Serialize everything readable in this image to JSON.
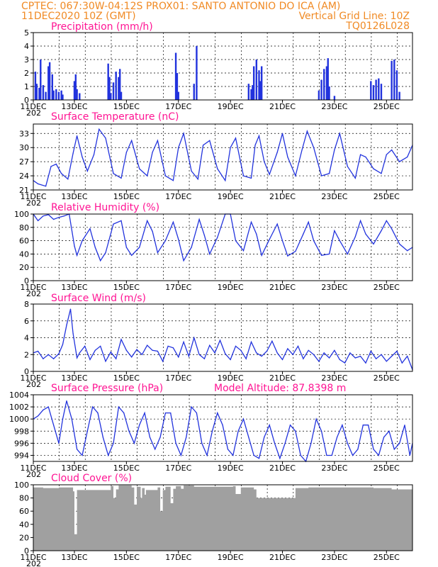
{
  "header": {
    "line1": "CPTEC:   067:30W-04:12S   PROX01: SANTO ANTONIO DO ICA (AM)",
    "line2_left": "11DEC2020 10Z (GMT)",
    "line2_right": "Vertical Grid Line: 10Z",
    "line3_right": "TQ0126L028",
    "color": "#f08a24"
  },
  "colors": {
    "title": "#ff1493",
    "series": "#2233dd",
    "cloud": "#a0a0a0"
  },
  "date_ticks": [
    "11DEC",
    "13DEC",
    "15DEC",
    "17DEC",
    "19DEC",
    "21DEC",
    "23DEC",
    "25DEC"
  ],
  "date_ticks_year": "202",
  "panel_titles": {
    "precipitation": "Precipitation (mm/h)",
    "temperature": "Surface Temperature (nC)",
    "humidity": "Relative Humidity (%)",
    "wind": "Surface Wind (m/s)",
    "pressure": "Surface Pressure (hPa)",
    "altitude": "Model Altitude: 87.8398 m",
    "cloud": "Cloud Cover (%)"
  },
  "chart_data": [
    {
      "id": "precipitation",
      "type": "bar",
      "unit": "mm/h",
      "ylim": [
        0,
        5
      ],
      "yticks": [
        0,
        1,
        2,
        3,
        4,
        5
      ],
      "x_start_day": 11.42,
      "x_end_day": 26.0,
      "x": [
        11.5,
        11.55,
        11.65,
        11.7,
        11.8,
        11.9,
        12.0,
        12.05,
        12.15,
        12.2,
        12.3,
        12.4,
        12.5,
        12.55,
        13.0,
        13.05,
        13.1,
        13.2,
        14.3,
        14.35,
        14.4,
        14.5,
        14.6,
        14.7,
        14.75,
        14.8,
        16.9,
        16.95,
        17.0,
        17.6,
        17.7,
        19.7,
        19.8,
        19.85,
        19.9,
        20.0,
        20.1,
        20.15,
        20.2,
        22.4,
        22.5,
        22.6,
        22.7,
        22.75,
        22.8,
        23.0,
        24.4,
        24.5,
        24.6,
        24.7,
        24.8,
        25.2,
        25.3,
        25.4,
        25.5
      ],
      "values": [
        2.1,
        1.2,
        0.9,
        3.0,
        1.1,
        0.6,
        2.5,
        2.8,
        1.9,
        0.7,
        0.8,
        0.6,
        0.7,
        0.4,
        1.4,
        1.9,
        0.8,
        0.5,
        2.7,
        1.7,
        0.5,
        1.3,
        2.1,
        1.7,
        2.3,
        0.6,
        3.5,
        2.0,
        0.6,
        1.2,
        4.0,
        1.2,
        0.8,
        1.1,
        2.5,
        3.0,
        2.2,
        1.4,
        2.5,
        0.7,
        1.5,
        2.3,
        2.5,
        3.1,
        1.0,
        0.3,
        1.4,
        1.1,
        1.5,
        1.6,
        1.2,
        2.9,
        3.0,
        2.2,
        0.6
      ]
    },
    {
      "id": "temperature",
      "type": "line",
      "unit": "C",
      "ylim": [
        21,
        35
      ],
      "yticks": [
        21,
        24,
        27,
        30,
        33
      ],
      "x": [
        11.42,
        11.6,
        11.9,
        12.1,
        12.3,
        12.5,
        12.75,
        12.95,
        13.1,
        13.3,
        13.5,
        13.75,
        13.95,
        14.2,
        14.5,
        14.8,
        15.0,
        15.2,
        15.5,
        15.8,
        16.0,
        16.2,
        16.5,
        16.8,
        17.0,
        17.2,
        17.5,
        17.75,
        17.95,
        18.2,
        18.5,
        18.8,
        19.0,
        19.2,
        19.5,
        19.8,
        19.95,
        20.1,
        20.3,
        20.5,
        20.8,
        21.0,
        21.2,
        21.5,
        21.75,
        21.95,
        22.2,
        22.5,
        22.8,
        23.0,
        23.2,
        23.5,
        23.8,
        24.0,
        24.2,
        24.5,
        24.8,
        25.0,
        25.2,
        25.5,
        25.8,
        26.0
      ],
      "values": [
        23.0,
        22.3,
        21.8,
        26.0,
        26.5,
        24.5,
        23.3,
        28.8,
        32.5,
        28.0,
        25.0,
        28.5,
        33.9,
        32.0,
        24.5,
        23.5,
        29.0,
        31.5,
        25.5,
        24.0,
        29.0,
        31.5,
        24.0,
        23.0,
        30.0,
        33.0,
        25.0,
        23.3,
        30.5,
        31.5,
        25.5,
        23.0,
        30.0,
        32.0,
        24.0,
        23.5,
        30.5,
        32.5,
        27.0,
        24.3,
        29.0,
        33.0,
        28.0,
        24.0,
        29.5,
        33.5,
        30.0,
        24.0,
        24.5,
        29.5,
        33.0,
        26.0,
        23.5,
        28.5,
        28.0,
        25.5,
        24.5,
        28.5,
        29.5,
        27.0,
        28.0,
        30.5
      ]
    },
    {
      "id": "humidity",
      "type": "line",
      "unit": "%",
      "ylim": [
        0,
        100
      ],
      "yticks": [
        0,
        20,
        40,
        60,
        80,
        100
      ],
      "x": [
        11.42,
        11.6,
        11.8,
        12.0,
        12.2,
        12.4,
        12.6,
        12.8,
        13.0,
        13.1,
        13.3,
        13.6,
        13.8,
        14.0,
        14.2,
        14.5,
        14.8,
        15.0,
        15.2,
        15.5,
        15.8,
        16.0,
        16.2,
        16.5,
        16.8,
        17.0,
        17.2,
        17.5,
        17.8,
        18.0,
        18.2,
        18.5,
        18.8,
        19.0,
        19.2,
        19.5,
        19.8,
        20.0,
        20.2,
        20.5,
        20.8,
        21.0,
        21.2,
        21.5,
        21.8,
        22.0,
        22.2,
        22.5,
        22.8,
        23.0,
        23.2,
        23.5,
        23.8,
        24.0,
        24.2,
        24.5,
        24.8,
        25.0,
        25.2,
        25.5,
        25.8,
        26.0
      ],
      "values": [
        100,
        90,
        97,
        99,
        92,
        95,
        97,
        100,
        52,
        38,
        60,
        78,
        50,
        30,
        42,
        85,
        90,
        50,
        38,
        50,
        90,
        74,
        42,
        60,
        88,
        62,
        30,
        50,
        92,
        68,
        40,
        65,
        100,
        100,
        60,
        45,
        88,
        70,
        38,
        62,
        85,
        60,
        37,
        44,
        70,
        88,
        60,
        38,
        40,
        75,
        60,
        40,
        66,
        90,
        70,
        55,
        75,
        90,
        78,
        55,
        45,
        50
      ]
    },
    {
      "id": "wind",
      "type": "line",
      "unit": "m/s",
      "ylim": [
        0,
        8
      ],
      "yticks": [
        0,
        2,
        4,
        6,
        8
      ],
      "x": [
        11.42,
        11.6,
        11.8,
        12.0,
        12.2,
        12.4,
        12.55,
        12.7,
        12.85,
        12.95,
        13.1,
        13.2,
        13.4,
        13.6,
        13.8,
        14.0,
        14.2,
        14.4,
        14.6,
        14.8,
        15.0,
        15.2,
        15.4,
        15.6,
        15.8,
        16.0,
        16.2,
        16.4,
        16.6,
        16.8,
        17.0,
        17.2,
        17.4,
        17.6,
        17.8,
        18.0,
        18.2,
        18.4,
        18.6,
        18.8,
        19.0,
        19.2,
        19.4,
        19.6,
        19.8,
        20.0,
        20.2,
        20.4,
        20.6,
        20.8,
        21.0,
        21.2,
        21.4,
        21.6,
        21.8,
        22.0,
        22.2,
        22.4,
        22.6,
        22.8,
        23.0,
        23.2,
        23.4,
        23.6,
        23.8,
        24.0,
        24.2,
        24.4,
        24.6,
        24.8,
        25.0,
        25.2,
        25.4,
        25.6,
        25.8,
        26.0
      ],
      "values": [
        2.2,
        2.4,
        1.5,
        2.0,
        1.5,
        2.1,
        3.2,
        5.5,
        7.4,
        4.5,
        1.6,
        2.2,
        3.0,
        1.4,
        2.5,
        3.0,
        1.2,
        2.3,
        1.5,
        3.8,
        2.5,
        1.7,
        2.6,
        2.0,
        3.1,
        2.5,
        2.4,
        1.2,
        3.0,
        2.8,
        1.7,
        3.5,
        1.8,
        4.0,
        2.0,
        1.5,
        3.1,
        2.2,
        3.7,
        2.1,
        1.4,
        3.0,
        2.5,
        1.5,
        3.5,
        2.2,
        1.8,
        2.4,
        3.6,
        2.2,
        1.4,
        2.7,
        2.0,
        3.0,
        1.5,
        2.5,
        2.0,
        1.2,
        2.2,
        1.6,
        2.5,
        1.4,
        1.0,
        2.2,
        1.6,
        1.8,
        1.0,
        2.4,
        1.5,
        2.0,
        1.2,
        1.8,
        2.4,
        1.0,
        1.8,
        0.2
      ]
    },
    {
      "id": "pressure",
      "type": "line",
      "unit": "hPa",
      "ylim": [
        993,
        1004
      ],
      "yticks": [
        994,
        996,
        998,
        1000,
        1002,
        1004
      ],
      "x": [
        11.42,
        11.6,
        11.8,
        12.0,
        12.2,
        12.4,
        12.55,
        12.7,
        12.9,
        13.1,
        13.3,
        13.5,
        13.7,
        13.9,
        14.1,
        14.3,
        14.5,
        14.7,
        14.9,
        15.1,
        15.3,
        15.5,
        15.7,
        15.9,
        16.1,
        16.3,
        16.5,
        16.7,
        16.9,
        17.1,
        17.3,
        17.5,
        17.7,
        17.9,
        18.1,
        18.3,
        18.5,
        18.7,
        18.9,
        19.1,
        19.3,
        19.5,
        19.7,
        19.9,
        20.1,
        20.3,
        20.5,
        20.7,
        20.9,
        21.1,
        21.3,
        21.5,
        21.7,
        21.9,
        22.1,
        22.3,
        22.5,
        22.7,
        22.9,
        23.1,
        23.3,
        23.5,
        23.7,
        23.9,
        24.1,
        24.3,
        24.5,
        24.7,
        24.9,
        25.1,
        25.3,
        25.5,
        25.7,
        25.9,
        26.0
      ],
      "values": [
        1000,
        1000.5,
        1001.5,
        1002,
        999,
        996,
        1000,
        1003,
        1000,
        995,
        994,
        998,
        1002,
        1001,
        997,
        994,
        996,
        1002,
        1001,
        998,
        996,
        999,
        1001,
        997,
        995,
        997,
        1001,
        1001,
        996,
        994,
        997,
        1002,
        1001,
        996,
        994,
        998,
        1001,
        999,
        995,
        994,
        998,
        1000,
        997,
        994,
        993.5,
        997,
        999,
        996,
        993.5,
        996,
        999,
        998,
        994,
        993,
        996,
        1000,
        998,
        994,
        994,
        997,
        999,
        996,
        994,
        995,
        999,
        999,
        995,
        994,
        997,
        998,
        995,
        996,
        999,
        994,
        996
      ]
    },
    {
      "id": "cloud",
      "type": "area",
      "unit": "%",
      "ylim": [
        0,
        100
      ],
      "yticks": [
        0,
        20,
        40,
        60,
        80,
        100
      ],
      "x": [
        11.42,
        11.8,
        12.4,
        12.95,
        13.0,
        13.1,
        14.4,
        14.5,
        14.6,
        14.7,
        15.2,
        15.3,
        15.4,
        15.55,
        15.6,
        15.7,
        15.75,
        16.2,
        16.3,
        16.4,
        16.5,
        16.7,
        16.8,
        16.9,
        17.1,
        17.2,
        17.6,
        19.1,
        19.2,
        19.4,
        19.9,
        20.0,
        21.5,
        22.0,
        24.5,
        25.2,
        26.0
      ],
      "values": [
        96,
        95,
        96,
        90,
        25,
        92,
        98,
        80,
        93,
        99,
        96,
        70,
        97,
        80,
        95,
        85,
        92,
        96,
        60,
        92,
        97,
        72,
        94,
        98,
        94,
        99,
        97,
        98,
        86,
        96,
        93,
        80,
        95,
        96,
        95,
        93,
        96
      ]
    }
  ]
}
